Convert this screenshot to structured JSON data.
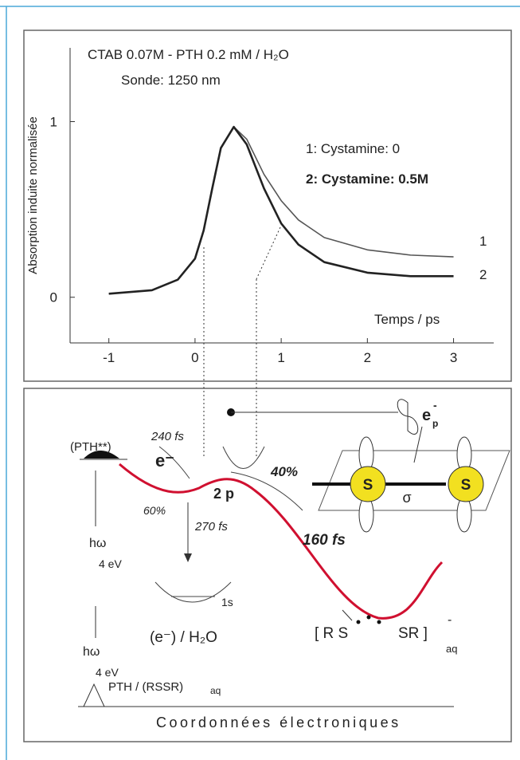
{
  "chart_data": {
    "type": "line",
    "title": "CTAB 0.07M - PTH 0.2 mM / H₂O",
    "subtitle": "Sonde: 1250 nm",
    "y_label": "Absorption induite normalisée",
    "x_label": "Temps / ps",
    "x": [
      -1,
      -0.5,
      -0.2,
      0,
      0.1,
      0.2,
      0.3,
      0.45,
      0.6,
      0.8,
      1,
      1.2,
      1.5,
      2,
      2.5,
      3
    ],
    "series": [
      {
        "name": "1: Cystamine: 0",
        "end_label": "1",
        "color": "#555555",
        "values": [
          0.02,
          0.04,
          0.1,
          0.22,
          0.38,
          0.62,
          0.85,
          0.97,
          0.9,
          0.7,
          0.55,
          0.44,
          0.34,
          0.27,
          0.24,
          0.23
        ]
      },
      {
        "name": "2: Cystamine: 0.5M",
        "end_label": "2",
        "color": "#222222",
        "values": [
          0.02,
          0.04,
          0.1,
          0.22,
          0.38,
          0.62,
          0.85,
          0.97,
          0.87,
          0.62,
          0.42,
          0.3,
          0.2,
          0.14,
          0.12,
          0.12
        ]
      }
    ],
    "xlim": [
      -1.45,
      3.42
    ],
    "ylim": [
      -0.26,
      1.42
    ],
    "xticks": [
      -1,
      0,
      1,
      2,
      3
    ],
    "yticks": [
      0,
      1
    ]
  },
  "diagram": {
    "pth_excited": "(PTH**)",
    "t1": "240 fs",
    "electron": "e⁻",
    "pct60": "60%",
    "level2p": "2 p",
    "t2": "270 fs",
    "level1s": "1s",
    "solvated": "(e⁻) / H₂O",
    "hw1": "hω",
    "ev1": "4 eV",
    "hw2": "hω",
    "ev2": "4 eV",
    "ground": "PTH / (RSSR)",
    "ground_sub": "aq",
    "pct40": "40%",
    "t3": "160 fs",
    "product_left": "[ R S",
    "product_right": "SR ]",
    "product_charge": "-",
    "product_sub": "aq",
    "ep": "e",
    "ep_sup": "-",
    "ep_sub": "p",
    "s1": "S",
    "s2": "S",
    "sigma": "σ",
    "axis": "Coordonnées électroniques"
  }
}
